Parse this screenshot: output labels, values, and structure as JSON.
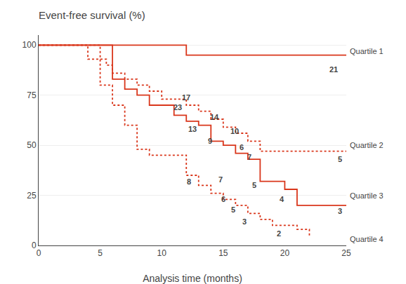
{
  "chart_data": {
    "type": "step",
    "title": "Event-free survival (%)",
    "xlabel": "Analysis time (months)",
    "xlim": [
      0,
      25
    ],
    "ylim": [
      0,
      105
    ],
    "xticks": [
      0,
      5,
      10,
      15,
      20,
      25
    ],
    "yticks": [
      0,
      25,
      50,
      75,
      100
    ],
    "grid": "y",
    "series": [
      {
        "x": [
          0,
          12,
          12,
          25
        ],
        "values": [
          100,
          100,
          95,
          95
        ],
        "color": "#d9361b",
        "line_style": "solid"
      },
      {
        "x": [
          0,
          4,
          5,
          5.5,
          6,
          7,
          8,
          9,
          10,
          12,
          13,
          14,
          15,
          16,
          17,
          18,
          25
        ],
        "values": [
          100,
          100,
          93,
          90,
          86,
          83,
          80,
          77,
          73,
          70,
          67,
          63,
          59,
          56,
          52,
          47,
          47
        ],
        "color": "#d9361b",
        "line_style": "dotted"
      },
      {
        "x": [
          0,
          5,
          6,
          7,
          8,
          9,
          11,
          12,
          13,
          14,
          15,
          16,
          17,
          18,
          20,
          21,
          25
        ],
        "values": [
          100,
          100,
          83,
          78,
          75,
          70,
          65,
          62,
          60,
          52,
          50,
          46,
          43,
          32,
          28,
          20,
          20
        ],
        "color": "#d9361b",
        "line_style": "solid"
      },
      {
        "x": [
          0,
          3,
          4,
          5,
          6,
          7,
          8,
          9,
          12,
          13,
          14,
          15,
          16,
          17,
          18,
          19,
          21,
          22
        ],
        "values": [
          100,
          100,
          93,
          80,
          70,
          60,
          48,
          45,
          35,
          30,
          26,
          23,
          20,
          16,
          13,
          10,
          8,
          5
        ],
        "color": "#d9361b",
        "line_style": "dotted"
      }
    ],
    "annotations": [
      {
        "x": 25.15,
        "y": 97,
        "text": "Quartile 1"
      },
      {
        "x": 25.15,
        "y": 50,
        "text": "Quartile 2"
      },
      {
        "x": 25.15,
        "y": 25,
        "text": "Quartile 3"
      },
      {
        "x": 25.15,
        "y": 3,
        "text": "Quartile 4"
      },
      {
        "x": 24.0,
        "y": 88,
        "text": "21"
      },
      {
        "x": 24.5,
        "y": 43,
        "text": "5"
      },
      {
        "x": 24.5,
        "y": 17,
        "text": "3"
      },
      {
        "x": 19.5,
        "y": 6,
        "text": "2"
      },
      {
        "x": 11.3,
        "y": 69,
        "text": "23"
      },
      {
        "x": 12.0,
        "y": 74,
        "text": "17"
      },
      {
        "x": 12.5,
        "y": 58,
        "text": "13"
      },
      {
        "x": 14.3,
        "y": 64,
        "text": "14"
      },
      {
        "x": 13.9,
        "y": 52,
        "text": "9"
      },
      {
        "x": 15.9,
        "y": 57,
        "text": "10"
      },
      {
        "x": 16.5,
        "y": 49,
        "text": "6"
      },
      {
        "x": 17.1,
        "y": 44,
        "text": "7"
      },
      {
        "x": 12.2,
        "y": 32,
        "text": "8"
      },
      {
        "x": 14.8,
        "y": 33,
        "text": "7"
      },
      {
        "x": 15.0,
        "y": 23,
        "text": "6"
      },
      {
        "x": 15.8,
        "y": 18,
        "text": "5"
      },
      {
        "x": 16.7,
        "y": 12,
        "text": "3"
      },
      {
        "x": 17.5,
        "y": 30,
        "text": "5"
      },
      {
        "x": 19.8,
        "y": 23,
        "text": "4"
      }
    ]
  }
}
